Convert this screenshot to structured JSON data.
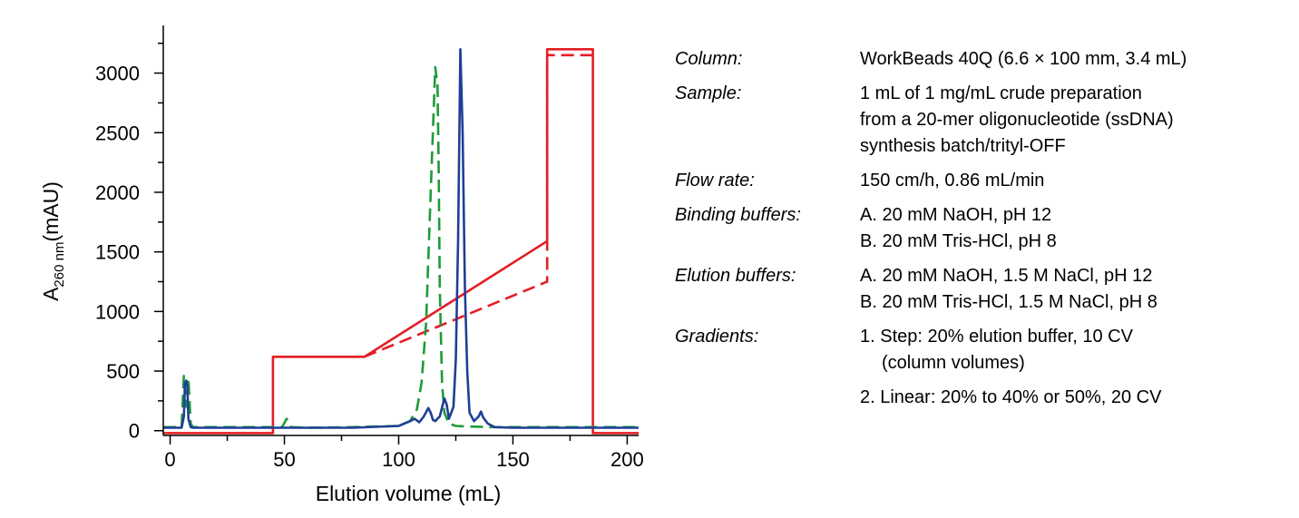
{
  "chart_data": {
    "type": "line",
    "title": "",
    "xlabel": "Elution volume (mL)",
    "ylabel_main": "A",
    "ylabel_sub": "260 nm",
    "ylabel_unit": "(mAU)",
    "xlim": [
      -3,
      205
    ],
    "ylim": [
      -40,
      3400
    ],
    "x_ticks": [
      0,
      50,
      100,
      150,
      200
    ],
    "y_ticks": [
      0,
      500,
      1000,
      1500,
      2000,
      2500,
      3000
    ],
    "series": [
      {
        "color": "#e31e24",
        "dash": "solid",
        "x": [
          -3,
          45,
          45,
          85,
          165,
          165,
          185,
          185,
          205
        ],
        "y": [
          -20,
          -20,
          620,
          620,
          1590,
          3200,
          3200,
          -20,
          -20
        ]
      },
      {
        "color": "#e31e24",
        "dash": "dashed",
        "x": [
          85,
          165,
          165,
          185
        ],
        "y": [
          620,
          1250,
          3150,
          3150
        ]
      },
      {
        "color": "#1f9a3a",
        "dash": "dashed",
        "x": [
          -3,
          5,
          6,
          7,
          8,
          9,
          10,
          49,
          51,
          53,
          60,
          80,
          100,
          105,
          108,
          110,
          112,
          114,
          116,
          117,
          117.5,
          118,
          119,
          120,
          122,
          125,
          130,
          140,
          160,
          200,
          205
        ],
        "y": [
          30,
          30,
          460,
          200,
          440,
          60,
          30,
          30,
          100,
          30,
          25,
          30,
          40,
          80,
          180,
          400,
          900,
          2000,
          3050,
          2900,
          2200,
          1200,
          400,
          150,
          60,
          40,
          35,
          30,
          30,
          30,
          30
        ]
      },
      {
        "color": "#1f3f96",
        "dash": "solid",
        "x": [
          -3,
          5,
          6,
          6.5,
          7,
          7.5,
          8,
          9,
          10,
          20,
          40,
          55,
          60,
          80,
          100,
          105,
          107,
          109,
          111,
          113,
          114,
          115,
          116,
          118,
          120,
          121,
          122,
          124,
          125,
          126,
          127,
          128,
          129,
          130,
          131,
          133,
          135,
          136,
          137,
          139,
          142,
          150,
          200,
          205
        ],
        "y": [
          25,
          25,
          120,
          400,
          420,
          380,
          100,
          30,
          25,
          25,
          25,
          25,
          25,
          25,
          40,
          80,
          100,
          70,
          120,
          190,
          150,
          90,
          80,
          120,
          270,
          220,
          100,
          200,
          600,
          1600,
          3200,
          2500,
          1200,
          500,
          150,
          80,
          120,
          160,
          110,
          60,
          30,
          25,
          25,
          25
        ]
      }
    ]
  },
  "info": {
    "rows": [
      {
        "label": "Column:",
        "values": [
          "WorkBeads 40Q (6.6 × 100 mm, 3.4 mL)"
        ]
      },
      {
        "label": "Sample:",
        "values": [
          "1 mL of 1 mg/mL crude preparation",
          "from a 20-mer oligonucleotide (ssDNA)",
          "synthesis batch/trityl-OFF"
        ]
      },
      {
        "label": "Flow rate:",
        "values": [
          "150 cm/h, 0.86 mL/min"
        ]
      },
      {
        "label": "Binding buffers:",
        "values": [
          "A. 20 mM NaOH, pH 12",
          "B. 20 mM Tris-HCl, pH 8"
        ]
      },
      {
        "label": "Elution buffers:",
        "values": [
          "A. 20 mM NaOH, 1.5 M NaCl, pH 12",
          "B. 20 mM Tris-HCl, 1.5 M NaCl, pH 8"
        ]
      },
      {
        "label": "Gradients:",
        "values": [
          "1. Step: 20% elution buffer, 10 CV",
          "(column volumes)"
        ]
      },
      {
        "label": "",
        "values": [
          "2. Linear: 20% to 40% or 50%, 20 CV"
        ]
      }
    ]
  }
}
